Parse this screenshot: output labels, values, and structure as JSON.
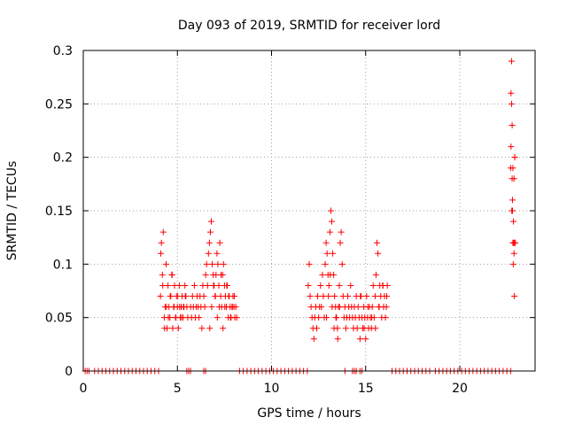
{
  "chart_data": {
    "type": "scatter",
    "title": "Day 093 of 2019, SRMTID for receiver lord",
    "xlabel": "GPS time / hours",
    "ylabel": "SRMTID / TECUs",
    "xlim": [
      0,
      24
    ],
    "ylim": [
      0,
      0.3
    ],
    "xticks": [
      0,
      5,
      10,
      15,
      20
    ],
    "xtick_labels": [
      "0",
      "5",
      "10",
      "15",
      "20"
    ],
    "yticks": [
      0,
      0.05,
      0.1,
      0.15,
      0.2,
      0.25,
      0.3
    ],
    "ytick_labels": [
      "0",
      "0.05",
      "0.1",
      "0.15",
      "0.2",
      "0.25",
      "0.3"
    ],
    "grid": true,
    "legend": "none",
    "marker": "plus",
    "color": "#ff0000",
    "series": [
      {
        "x": [
          4.1,
          4.15,
          4.2,
          4.25,
          4.3,
          4.35,
          4.4,
          4.45,
          4.5,
          4.55,
          4.6,
          4.65,
          4.7,
          4.75,
          4.8,
          4.85,
          4.9,
          4.95,
          5.0,
          5.05,
          5.1,
          5.15,
          5.2,
          5.25,
          5.3,
          5.35,
          5.4,
          5.45,
          5.5,
          5.55,
          4.12,
          4.22,
          4.32,
          4.42,
          4.52,
          4.62,
          4.72,
          4.82,
          4.92,
          5.02,
          5.12,
          5.22,
          5.32,
          5.42,
          5.7,
          5.75,
          5.8,
          5.85,
          5.9,
          5.95,
          6.0,
          6.05,
          6.1,
          6.15,
          6.2,
          6.25,
          6.3,
          6.35,
          6.4,
          6.45,
          6.5,
          6.55,
          6.6,
          6.65,
          6.7,
          6.75,
          6.8,
          6.85,
          6.9,
          6.95,
          7.0,
          7.05,
          7.1,
          7.15,
          7.2,
          7.25,
          7.3,
          7.35,
          7.4,
          7.45,
          7.5,
          7.55,
          7.6,
          7.65,
          7.7,
          7.75,
          7.8,
          7.85,
          7.9,
          7.95,
          8.0,
          8.05,
          8.1,
          8.15,
          6.72,
          6.82,
          6.92,
          7.02,
          7.12,
          7.22,
          7.32,
          7.42,
          7.52,
          7.62,
          7.72,
          7.82,
          7.92,
          8.02,
          11.95,
          12.0,
          12.05,
          12.1,
          12.15,
          12.2,
          12.25,
          12.3,
          12.35,
          12.4,
          12.45,
          12.5,
          12.55,
          12.6,
          12.65,
          12.7,
          12.75,
          12.8,
          12.85,
          12.9,
          12.95,
          13.0,
          13.05,
          13.1,
          13.15,
          13.2,
          13.25,
          13.3,
          13.35,
          13.4,
          13.45,
          13.5,
          13.55,
          13.6,
          13.65,
          13.7,
          13.75,
          13.8,
          13.85,
          13.9,
          13.95,
          14.0,
          14.05,
          14.1,
          14.15,
          14.2,
          14.25,
          14.3,
          14.35,
          14.4,
          14.45,
          14.5,
          12.92,
          13.02,
          13.12,
          13.22,
          13.32,
          13.42,
          13.52,
          13.62,
          14.55,
          14.6,
          14.65,
          14.7,
          14.75,
          14.8,
          14.85,
          14.9,
          14.95,
          15.0,
          15.05,
          15.1,
          15.15,
          15.2,
          15.25,
          15.3,
          15.35,
          15.4,
          15.45,
          15.5,
          15.55,
          15.6,
          15.65,
          15.7,
          15.75,
          15.8,
          15.85,
          15.9,
          15.95,
          16.0,
          16.05,
          16.1,
          16.15,
          14.72,
          14.92,
          15.12,
          15.32,
          15.52,
          15.72,
          15.92,
          16.12,
          22.7,
          22.72,
          22.75,
          22.75,
          22.78,
          22.8,
          22.8,
          22.82,
          22.85,
          22.85,
          22.88,
          22.9,
          22.9,
          22.92,
          22.72,
          22.95,
          22.78,
          22.82,
          22.88,
          22.92,
          22.76,
          22.84
        ],
        "y": [
          0.07,
          0.12,
          0.09,
          0.13,
          0.05,
          0.06,
          0.1,
          0.04,
          0.08,
          0.06,
          0.05,
          0.07,
          0.09,
          0.04,
          0.06,
          0.08,
          0.05,
          0.07,
          0.06,
          0.04,
          0.08,
          0.05,
          0.06,
          0.07,
          0.05,
          0.06,
          0.08,
          0.07,
          0.06,
          0.05,
          0.11,
          0.08,
          0.04,
          0.06,
          0.05,
          0.07,
          0.09,
          0.06,
          0.05,
          0.07,
          0.06,
          0.05,
          0.06,
          0.07,
          0.06,
          0.05,
          0.07,
          0.06,
          0.08,
          0.05,
          0.06,
          0.07,
          0.06,
          0.05,
          0.07,
          0.06,
          0.04,
          0.08,
          0.07,
          0.06,
          0.09,
          0.1,
          0.08,
          0.11,
          0.12,
          0.13,
          0.14,
          0.1,
          0.09,
          0.08,
          0.07,
          0.09,
          0.11,
          0.1,
          0.08,
          0.12,
          0.07,
          0.06,
          0.09,
          0.1,
          0.08,
          0.07,
          0.06,
          0.08,
          0.05,
          0.07,
          0.06,
          0.05,
          0.06,
          0.07,
          0.06,
          0.05,
          0.06,
          0.05,
          0.04,
          0.06,
          0.08,
          0.07,
          0.05,
          0.06,
          0.09,
          0.04,
          0.06,
          0.08,
          0.07,
          0.05,
          0.06,
          0.07,
          0.08,
          0.1,
          0.07,
          0.06,
          0.05,
          0.04,
          0.03,
          0.05,
          0.06,
          0.04,
          0.07,
          0.05,
          0.06,
          0.08,
          0.06,
          0.09,
          0.07,
          0.05,
          0.1,
          0.12,
          0.11,
          0.09,
          0.08,
          0.13,
          0.15,
          0.14,
          0.11,
          0.09,
          0.07,
          0.06,
          0.05,
          0.04,
          0.06,
          0.08,
          0.12,
          0.13,
          0.1,
          0.07,
          0.05,
          0.06,
          0.04,
          0.05,
          0.07,
          0.06,
          0.05,
          0.08,
          0.06,
          0.05,
          0.04,
          0.06,
          0.05,
          0.07,
          0.05,
          0.07,
          0.09,
          0.06,
          0.04,
          0.05,
          0.03,
          0.06,
          0.04,
          0.06,
          0.05,
          0.03,
          0.07,
          0.05,
          0.04,
          0.06,
          0.05,
          0.03,
          0.07,
          0.05,
          0.04,
          0.06,
          0.05,
          0.04,
          0.06,
          0.08,
          0.05,
          0.07,
          0.09,
          0.12,
          0.11,
          0.06,
          0.08,
          0.07,
          0.05,
          0.08,
          0.06,
          0.07,
          0.05,
          0.06,
          0.08,
          0.07,
          0.04,
          0.06,
          0.05,
          0.04,
          0.06,
          0.08,
          0.07,
          0.19,
          0.21,
          0.25,
          0.29,
          0.18,
          0.16,
          0.15,
          0.12,
          0.12,
          0.14,
          0.11,
          0.12,
          0.07,
          0.2,
          0.26,
          0.12,
          0.23,
          0.19,
          0.18,
          0.2,
          0.15,
          0.1
        ]
      },
      {
        "name": "",
        "x": [
          0.1,
          0.2,
          0.3,
          0.6,
          0.8,
          1.0,
          1.2,
          1.4,
          1.6,
          1.8,
          2.0,
          2.2,
          2.4,
          2.6,
          2.8,
          3.0,
          3.2,
          3.4,
          3.6,
          3.8,
          4.0,
          5.5,
          5.6,
          5.7,
          6.4,
          6.5,
          8.3,
          8.5,
          8.7,
          8.9,
          9.1,
          9.3,
          9.5,
          9.7,
          9.9,
          10.1,
          10.3,
          10.5,
          10.7,
          10.9,
          11.1,
          11.3,
          11.5,
          11.7,
          11.9,
          13.9,
          14.3,
          14.4,
          14.5,
          14.7,
          14.8,
          16.4,
          16.6,
          16.8,
          17.0,
          17.2,
          17.4,
          17.6,
          17.8,
          18.0,
          18.2,
          18.4,
          18.7,
          18.9,
          19.1,
          19.3,
          19.5,
          19.7,
          19.9,
          20.1,
          20.3,
          20.5,
          20.7,
          20.9,
          21.1,
          21.3,
          21.5,
          21.7,
          21.9,
          22.1,
          22.3,
          22.5,
          22.7
        ],
        "y": [
          0,
          0,
          0,
          0,
          0,
          0,
          0,
          0,
          0,
          0,
          0,
          0,
          0,
          0,
          0,
          0,
          0,
          0,
          0,
          0,
          0,
          0,
          0,
          0,
          0,
          0,
          0,
          0,
          0,
          0,
          0,
          0,
          0,
          0,
          0,
          0,
          0,
          0,
          0,
          0,
          0,
          0,
          0,
          0,
          0,
          0,
          0,
          0,
          0,
          0,
          0,
          0,
          0,
          0,
          0,
          0,
          0,
          0,
          0,
          0,
          0,
          0,
          0,
          0,
          0,
          0,
          0,
          0,
          0,
          0,
          0,
          0,
          0,
          0,
          0,
          0,
          0,
          0,
          0,
          0,
          0,
          0,
          0
        ]
      }
    ]
  }
}
